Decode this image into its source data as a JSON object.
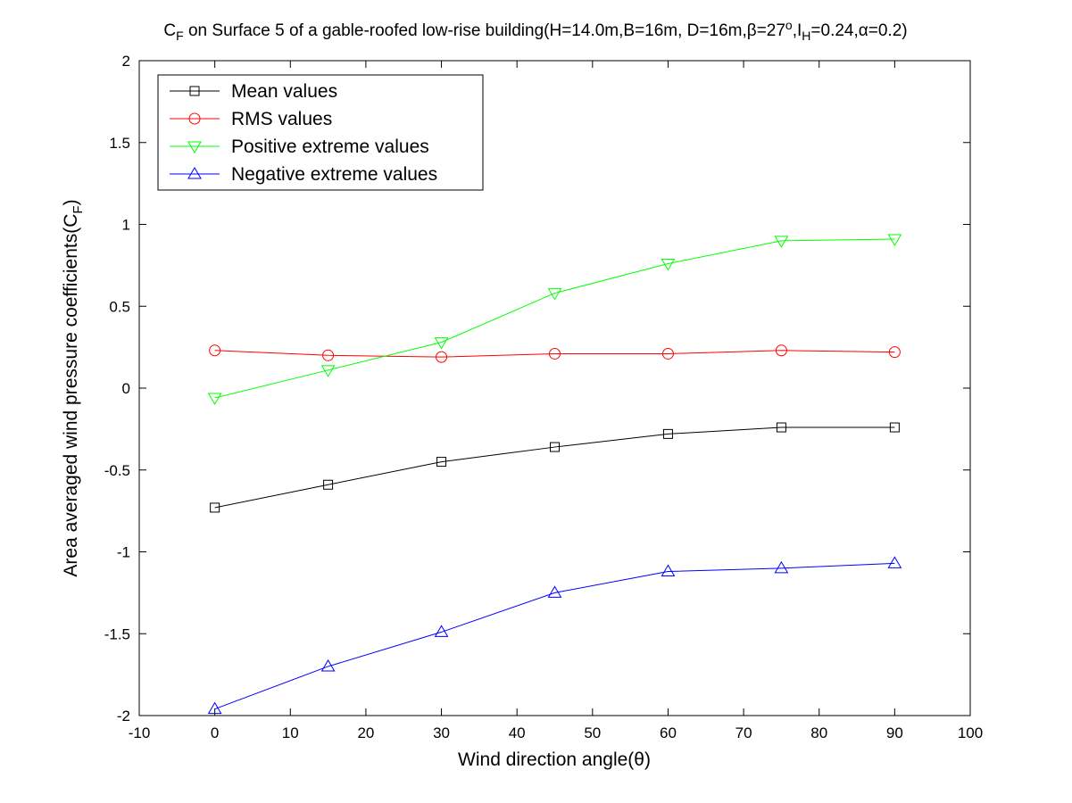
{
  "chart_data": {
    "type": "line",
    "title": "C_F on Surface 5 of a gable-roofed low-rise building(H=14.0m,B=16m, D=16m,β=27°,I_H=0.24,α=0.2)",
    "title_parts": {
      "main_prefix": "C",
      "main_sub": "F",
      "pre_beta": " on Surface 5 of a gable-roofed low-rise building(H=14.0m,B=16m, D=16m,",
      "beta": "β",
      "beta_val": "=27",
      "degree": "o",
      "i_prefix": ",I",
      "i_sub": "H",
      "post_i": "=0.24,",
      "alpha": "α",
      "alpha_val": "=0.2)"
    },
    "xlabel": "Wind direction angle(θ)",
    "ylabel": "Area averaged wind pressure coefficients(C_F)",
    "ylabel_parts": {
      "prefix": "Area averaged wind pressure coefficients(C",
      "sub": "F",
      "suffix": ")"
    },
    "xlim": [
      -10,
      100
    ],
    "ylim": [
      -2,
      2
    ],
    "xticks": [
      -10,
      0,
      10,
      20,
      30,
      40,
      50,
      60,
      70,
      80,
      90,
      100
    ],
    "yticks": [
      -2,
      -1.5,
      -1,
      -0.5,
      0,
      0.5,
      1,
      1.5,
      2
    ],
    "xtick_labels": [
      "-10",
      "0",
      "10",
      "20",
      "30",
      "40",
      "50",
      "60",
      "70",
      "80",
      "90",
      "100"
    ],
    "ytick_labels": [
      "-2",
      "-1.5",
      "-1",
      "-0.5",
      "0",
      "0.5",
      "1",
      "1.5",
      "2"
    ],
    "grid": false,
    "legend_position": "top-left",
    "x": [
      0,
      15,
      30,
      45,
      60,
      75,
      90
    ],
    "series": [
      {
        "name": "Mean values",
        "color": "#000000",
        "marker": "square",
        "values": [
          -0.73,
          -0.59,
          -0.45,
          -0.36,
          -0.28,
          -0.24,
          -0.24
        ]
      },
      {
        "name": "RMS values",
        "color": "#ff0000",
        "marker": "circle",
        "values": [
          0.23,
          0.2,
          0.19,
          0.21,
          0.21,
          0.23,
          0.22
        ]
      },
      {
        "name": "Positive extreme values",
        "color": "#00ff00",
        "marker": "triangle-down",
        "values": [
          -0.06,
          0.11,
          0.28,
          0.58,
          0.76,
          0.9,
          0.91
        ]
      },
      {
        "name": "Negative extreme values",
        "color": "#0000ff",
        "marker": "triangle-up",
        "values": [
          -1.96,
          -1.7,
          -1.49,
          -1.25,
          -1.12,
          -1.1,
          -1.07
        ]
      }
    ]
  }
}
